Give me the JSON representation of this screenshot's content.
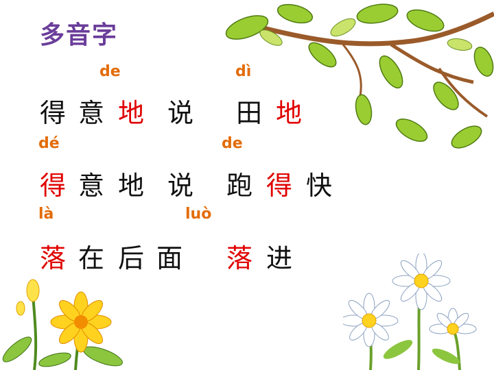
{
  "title": "多音字",
  "colors": {
    "title": "#6a3d9a",
    "pinyin": "#e36c09",
    "highlight": "#e00000",
    "text": "#111111"
  },
  "rows": [
    {
      "pinyin": [
        "de",
        "dì"
      ],
      "chars": [
        "得",
        "意",
        "地",
        "说",
        "田",
        "地"
      ]
    },
    {
      "pinyin": [
        "dé",
        "de"
      ],
      "chars": [
        "得",
        "意",
        "地",
        "说",
        "跑",
        "得",
        "快"
      ]
    },
    {
      "pinyin": [
        "là",
        "luò"
      ],
      "chars": [
        "落",
        "在",
        "后",
        "面",
        "落",
        "进"
      ]
    }
  ],
  "decorations": [
    "oak-branch-icon",
    "yellow-flower-icon",
    "daisy-icon"
  ]
}
